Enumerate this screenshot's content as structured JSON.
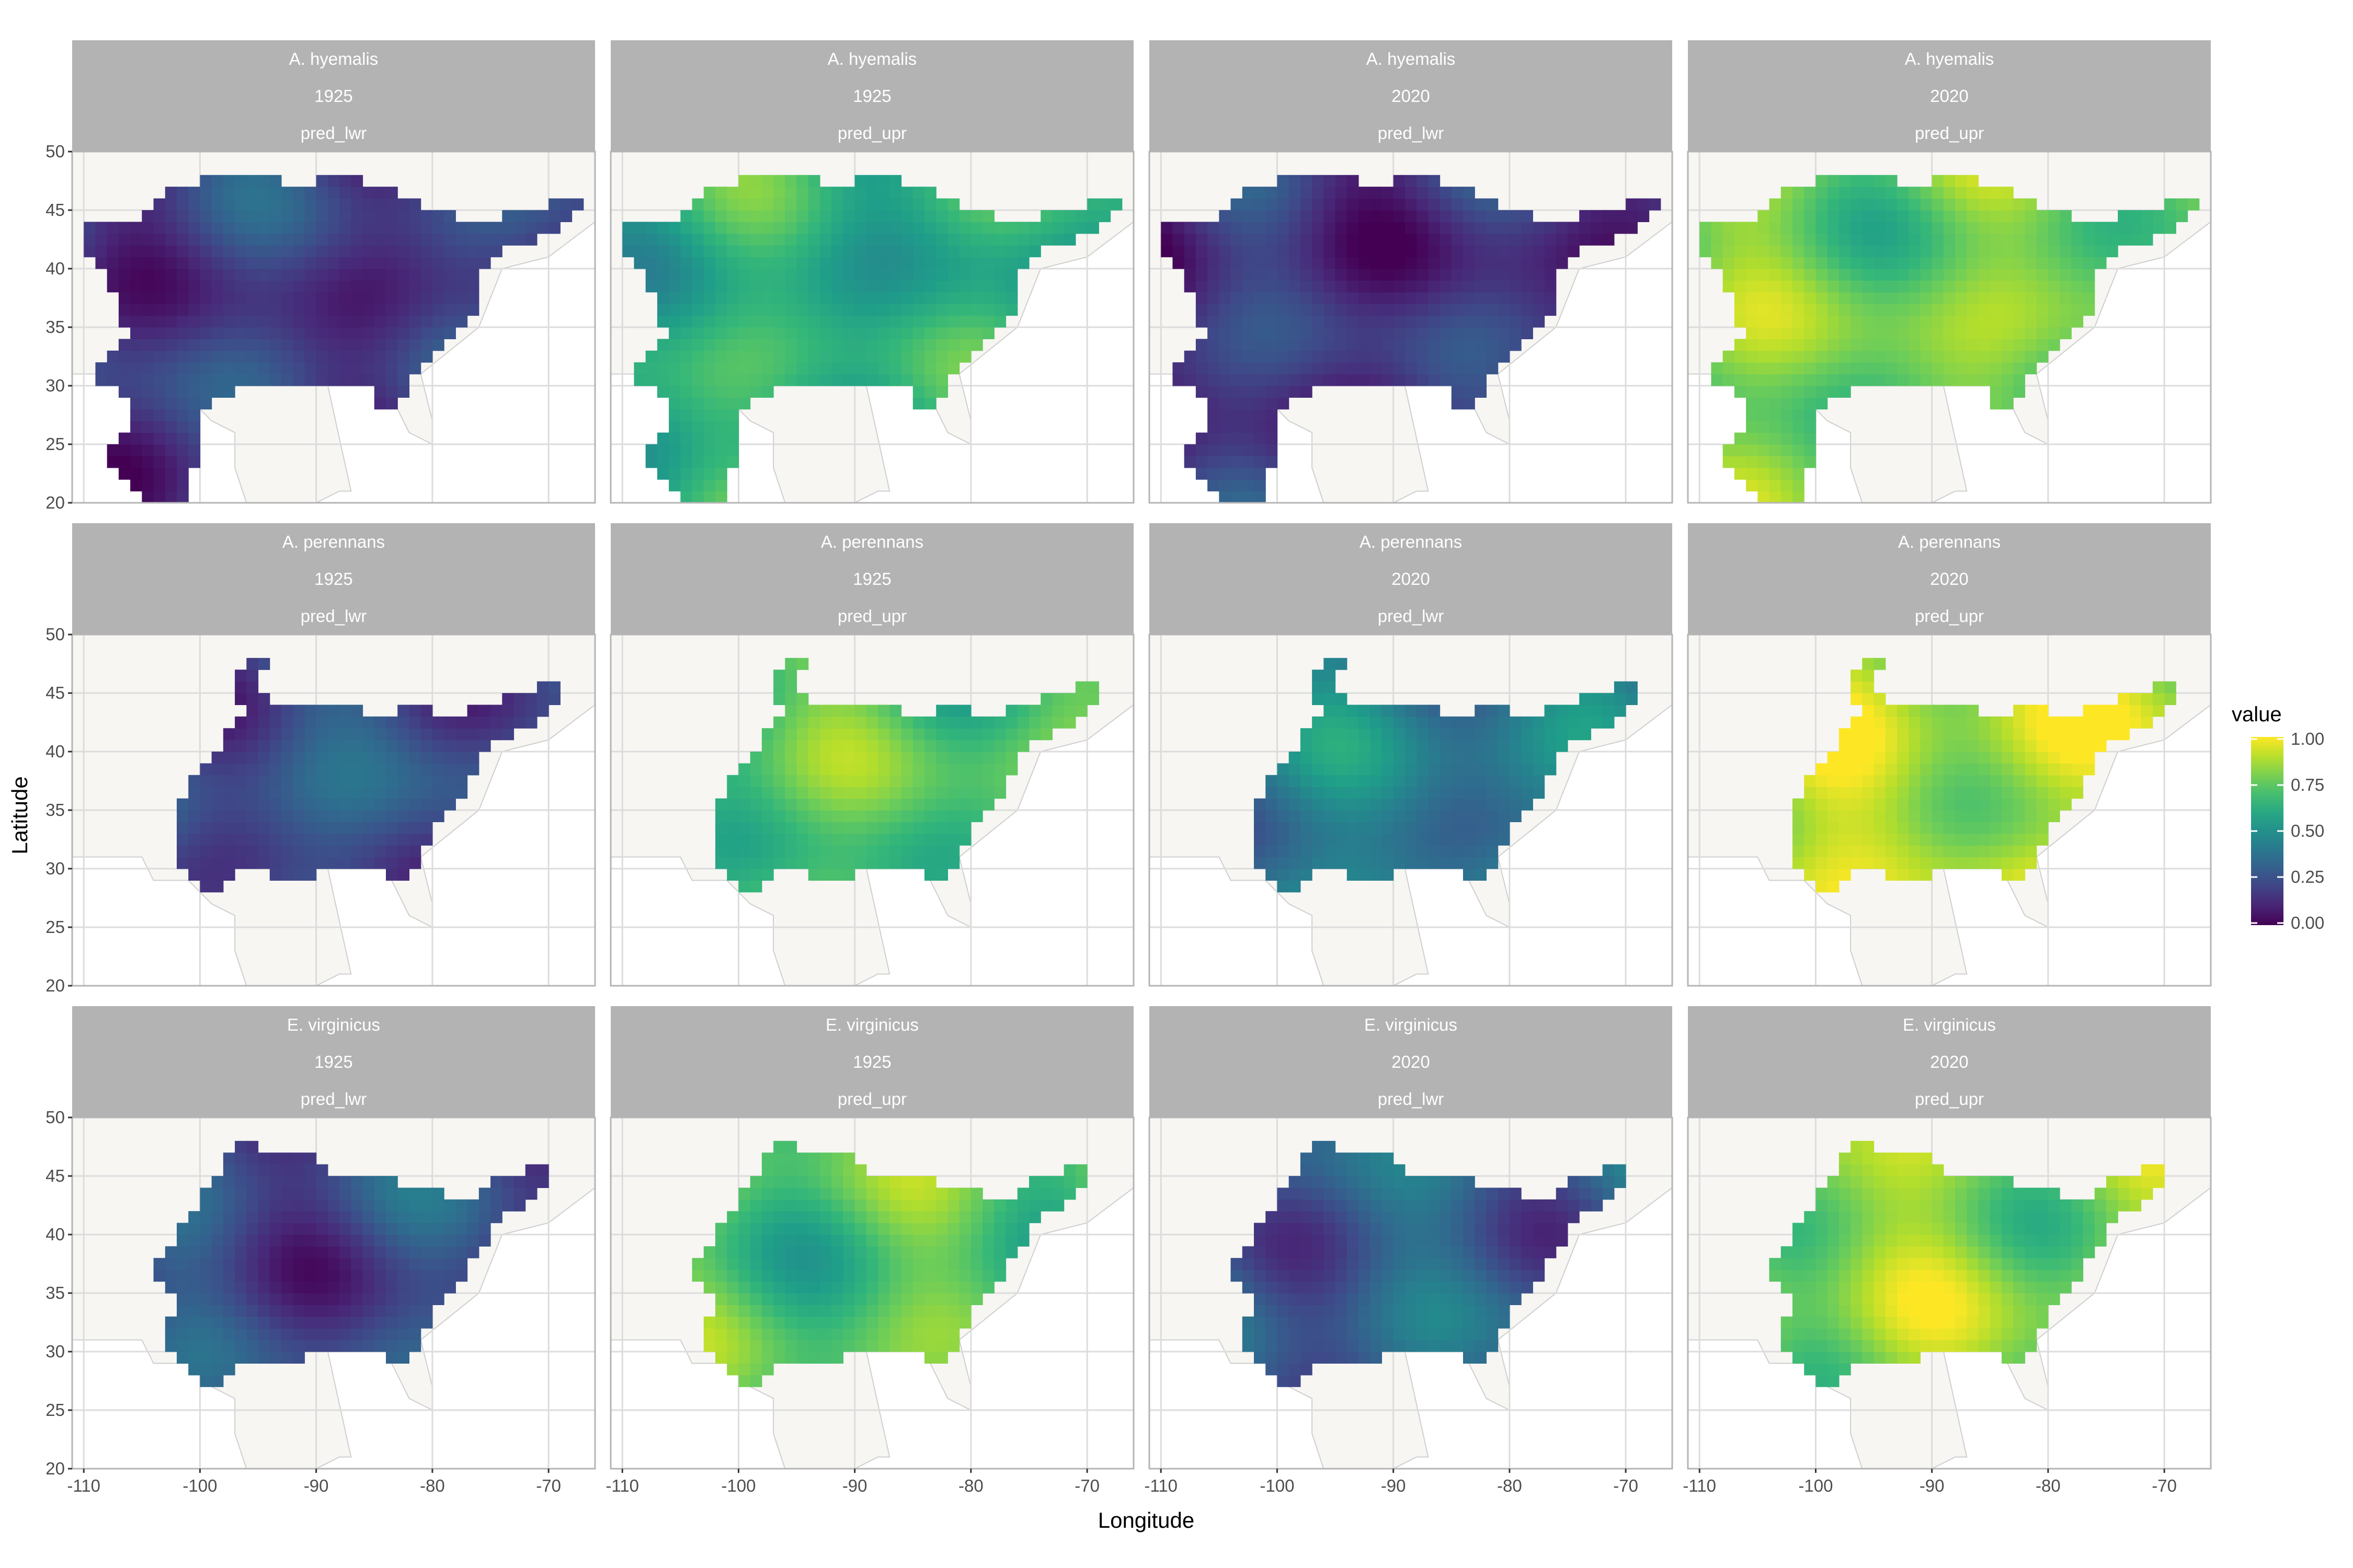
{
  "chart_data": {
    "type": "heatmap",
    "facet_strips": [
      [
        "A. hyemalis",
        "1925",
        "pred_lwr"
      ],
      [
        "A. hyemalis",
        "1925",
        "pred_upr"
      ],
      [
        "A. hyemalis",
        "2020",
        "pred_lwr"
      ],
      [
        "A. hyemalis",
        "2020",
        "pred_upr"
      ],
      [
        "A. perennans",
        "1925",
        "pred_lwr"
      ],
      [
        "A. perennans",
        "1925",
        "pred_upr"
      ],
      [
        "A. perennans",
        "2020",
        "pred_lwr"
      ],
      [
        "A. perennans",
        "2020",
        "pred_upr"
      ],
      [
        "E. virginicus",
        "1925",
        "pred_lwr"
      ],
      [
        "E. virginicus",
        "1925",
        "pred_upr"
      ],
      [
        "E. virginicus",
        "2020",
        "pred_lwr"
      ],
      [
        "E. virginicus",
        "2020",
        "pred_upr"
      ]
    ],
    "xlabel": "Longitude",
    "ylabel": "Latitude",
    "xlim": [
      -111,
      -66
    ],
    "ylim": [
      20,
      50
    ],
    "x_ticks": [
      -110,
      -100,
      -90,
      -80,
      -70
    ],
    "y_ticks": [
      20,
      25,
      30,
      35,
      40,
      45,
      50
    ],
    "legend": {
      "title": "value",
      "position": "right",
      "breaks": [
        "1.00",
        "0.75",
        "0.50",
        "0.25",
        "0.00"
      ],
      "palette": "viridis",
      "colors": [
        "#440154",
        "#3b528b",
        "#21918c",
        "#5ec962",
        "#fde725"
      ]
    },
    "approx_mean_values": [
      [
        0.18,
        0.62,
        0.15,
        0.78
      ],
      [
        0.25,
        0.72,
        0.42,
        0.88
      ],
      [
        0.22,
        0.72,
        0.3,
        0.82
      ]
    ],
    "grid": true,
    "colors": {
      "strip_bg": "#b3b3b3",
      "land_bg": "#f7f6f3",
      "grid": "#dcdcdc",
      "panel_border": "#b4b4b4"
    }
  }
}
